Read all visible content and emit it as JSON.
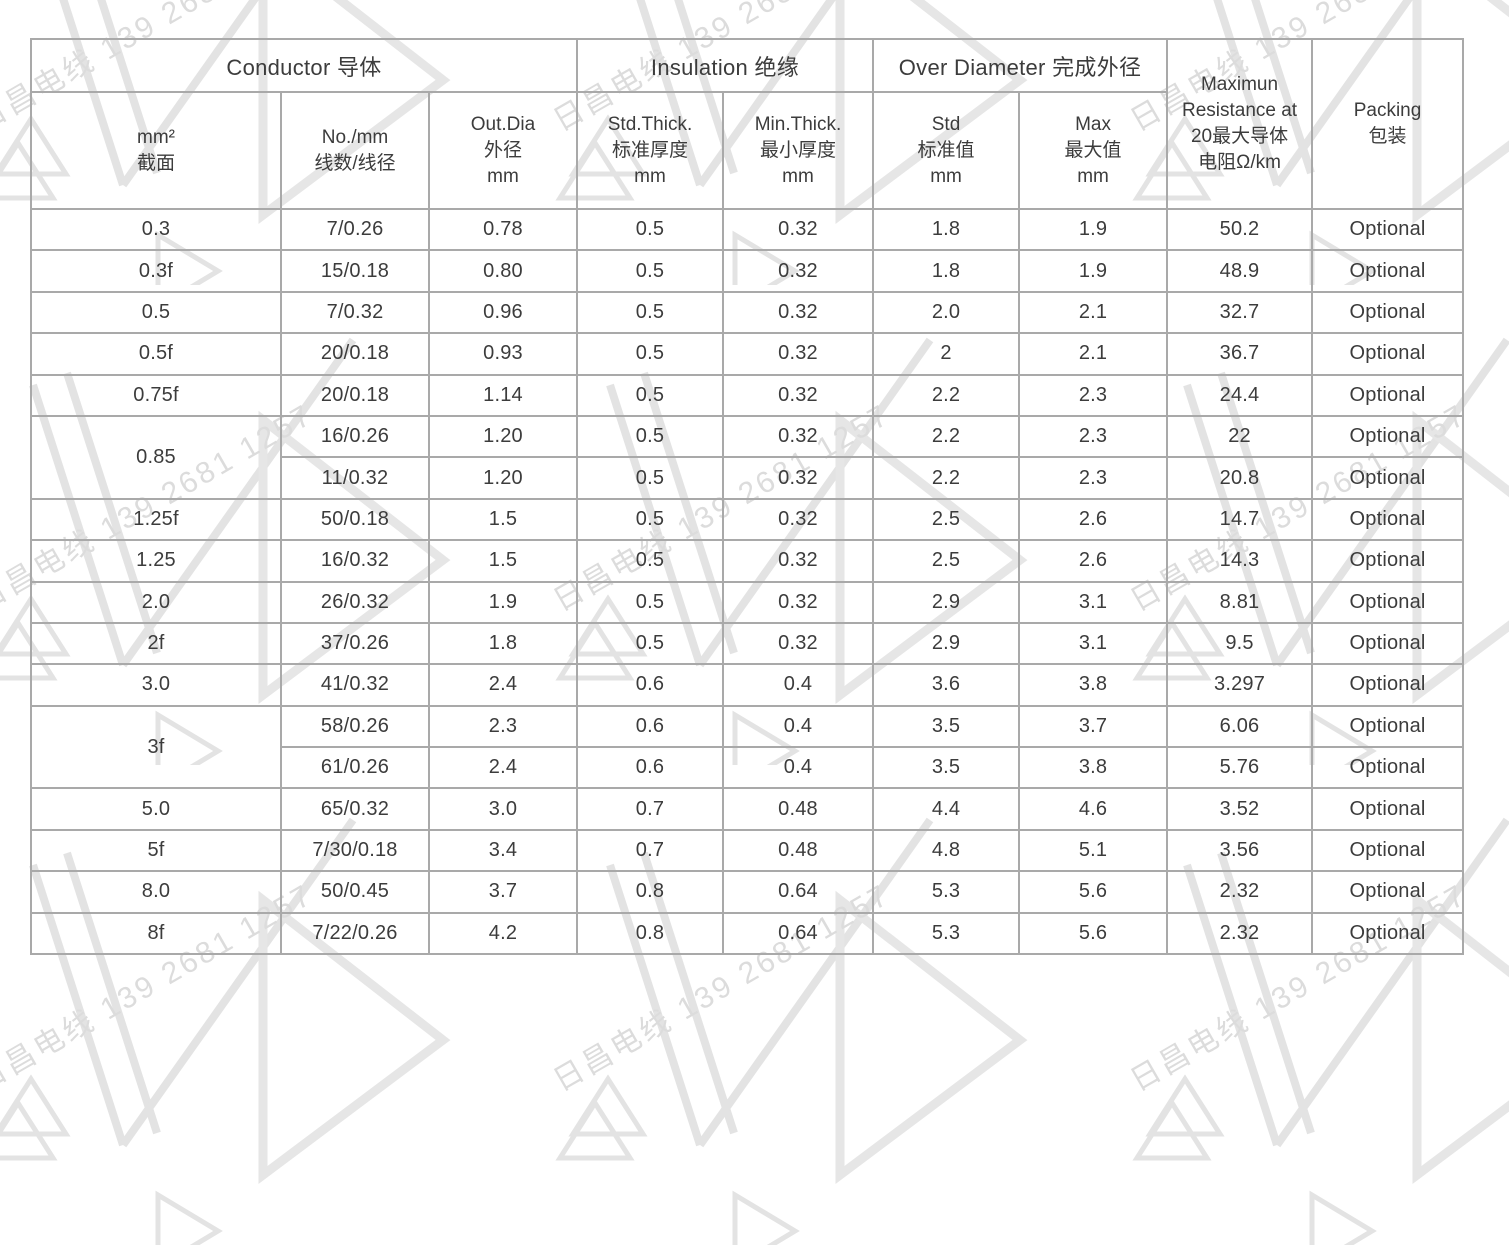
{
  "watermark": {
    "text": "日昌电线 139 2681 1257"
  },
  "table": {
    "groups": [
      {
        "label": "Conductor 导体",
        "colspan": 3
      },
      {
        "label": "Insulation 绝缘",
        "colspan": 2
      },
      {
        "label": "Over Diameter 完成外径",
        "colspan": 2
      }
    ],
    "columns": [
      {
        "label": "mm²\n截面"
      },
      {
        "label": "No./mm\n线数/线径"
      },
      {
        "label": "Out.Dia\n外径\nmm"
      },
      {
        "label": "Std.Thick.\n标准厚度\nmm"
      },
      {
        "label": "Min.Thick.\n最小厚度\nmm"
      },
      {
        "label": "Std\n标准值\nmm"
      },
      {
        "label": "Max\n最大值\nmm"
      }
    ],
    "span_columns": [
      {
        "label": "Maximun\nResistance at\n20最大导体\n电阻Ω/km"
      },
      {
        "label": "Packing\n包装"
      }
    ],
    "rows": [
      {
        "size": "0.3",
        "span": 1,
        "cells": [
          "7/0.26",
          "0.78",
          "0.5",
          "0.32",
          "1.8",
          "1.9",
          "50.2",
          "Optional"
        ]
      },
      {
        "size": "0.3f",
        "span": 1,
        "cells": [
          "15/0.18",
          "0.80",
          "0.5",
          "0.32",
          "1.8",
          "1.9",
          "48.9",
          "Optional"
        ]
      },
      {
        "size": "0.5",
        "span": 1,
        "cells": [
          "7/0.32",
          "0.96",
          "0.5",
          "0.32",
          "2.0",
          "2.1",
          "32.7",
          "Optional"
        ]
      },
      {
        "size": "0.5f",
        "span": 1,
        "cells": [
          "20/0.18",
          "0.93",
          "0.5",
          "0.32",
          "2",
          "2.1",
          "36.7",
          "Optional"
        ]
      },
      {
        "size": "0.75f",
        "span": 1,
        "cells": [
          "20/0.18",
          "1.14",
          "0.5",
          "0.32",
          "2.2",
          "2.3",
          "24.4",
          "Optional"
        ]
      },
      {
        "size": "0.85",
        "span": 2,
        "cells": [
          "16/0.26",
          "1.20",
          "0.5",
          "0.32",
          "2.2",
          "2.3",
          "22",
          "Optional"
        ]
      },
      {
        "size": null,
        "cells": [
          "11/0.32",
          "1.20",
          "0.5",
          "0.32",
          "2.2",
          "2.3",
          "20.8",
          "Optional"
        ]
      },
      {
        "size": "1.25f",
        "span": 1,
        "cells": [
          "50/0.18",
          "1.5",
          "0.5",
          "0.32",
          "2.5",
          "2.6",
          "14.7",
          "Optional"
        ]
      },
      {
        "size": "1.25",
        "span": 1,
        "cells": [
          "16/0.32",
          "1.5",
          "0.5",
          "0.32",
          "2.5",
          "2.6",
          "14.3",
          "Optional"
        ]
      },
      {
        "size": "2.0",
        "span": 1,
        "cells": [
          "26/0.32",
          "1.9",
          "0.5",
          "0.32",
          "2.9",
          "3.1",
          "8.81",
          "Optional"
        ]
      },
      {
        "size": "2f",
        "span": 1,
        "cells": [
          "37/0.26",
          "1.8",
          "0.5",
          "0.32",
          "2.9",
          "3.1",
          "9.5",
          "Optional"
        ]
      },
      {
        "size": "3.0",
        "span": 1,
        "cells": [
          "41/0.32",
          "2.4",
          "0.6",
          "0.4",
          "3.6",
          "3.8",
          "3.297",
          "Optional"
        ]
      },
      {
        "size": "3f",
        "span": 2,
        "cells": [
          "58/0.26",
          "2.3",
          "0.6",
          "0.4",
          "3.5",
          "3.7",
          "6.06",
          "Optional"
        ]
      },
      {
        "size": null,
        "cells": [
          "61/0.26",
          "2.4",
          "0.6",
          "0.4",
          "3.5",
          "3.8",
          "5.76",
          "Optional"
        ]
      },
      {
        "size": "5.0",
        "span": 1,
        "cells": [
          "65/0.32",
          "3.0",
          "0.7",
          "0.48",
          "4.4",
          "4.6",
          "3.52",
          "Optional"
        ]
      },
      {
        "size": "5f",
        "span": 1,
        "cells": [
          "7/30/0.18",
          "3.4",
          "0.7",
          "0.48",
          "4.8",
          "5.1",
          "3.56",
          "Optional"
        ]
      },
      {
        "size": "8.0",
        "span": 1,
        "cells": [
          "50/0.45",
          "3.7",
          "0.8",
          "0.64",
          "5.3",
          "5.6",
          "2.32",
          "Optional"
        ]
      },
      {
        "size": "8f",
        "span": 1,
        "cells": [
          "7/22/0.26",
          "4.2",
          "0.8",
          "0.64",
          "5.3",
          "5.6",
          "2.32",
          "Optional"
        ]
      }
    ]
  }
}
